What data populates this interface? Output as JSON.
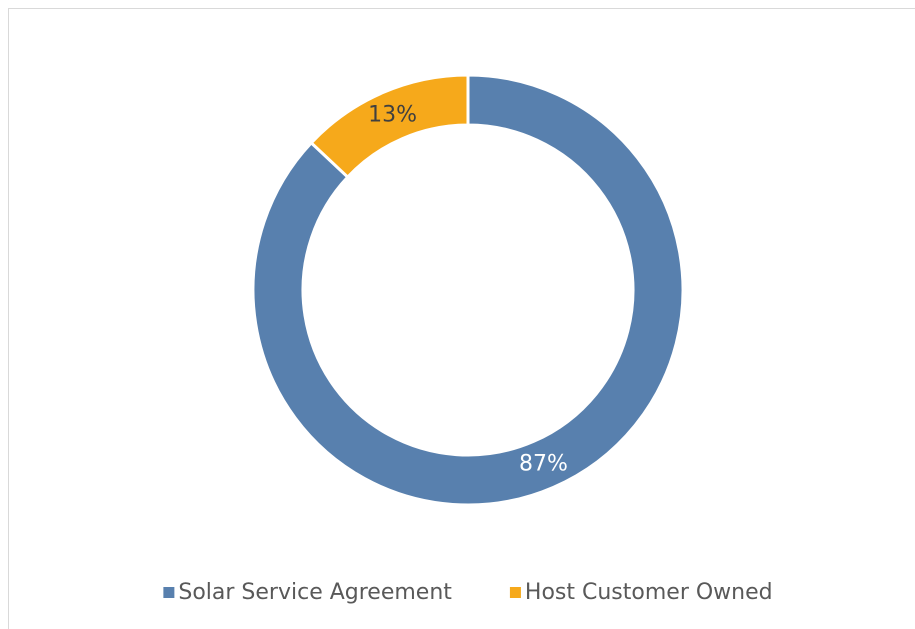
{
  "chart_data": {
    "type": "donut",
    "categories": [
      "Solar Service Agreement",
      "Host Customer Owned"
    ],
    "values": [
      87,
      13
    ],
    "value_labels": [
      "87%",
      "13%"
    ],
    "colors": [
      "#5880ae",
      "#f6a91b"
    ],
    "label_colors": [
      "#ffffff",
      "#404040"
    ],
    "legend": "bottom"
  }
}
